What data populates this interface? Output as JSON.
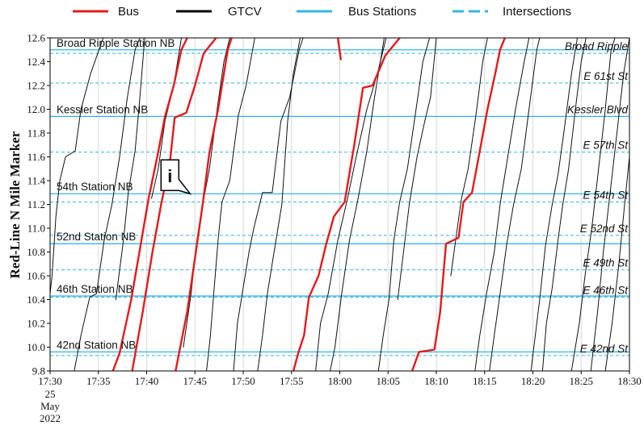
{
  "chart_data": {
    "type": "line",
    "title": "",
    "ylabel": "Red-Line N Mile Marker",
    "xlabel": "",
    "ylim": [
      9.8,
      12.6
    ],
    "y_ticks": [
      "9.8",
      "10.0",
      "10.2",
      "10.4",
      "10.6",
      "10.8",
      "11.0",
      "11.2",
      "11.4",
      "11.6",
      "11.8",
      "12.0",
      "12.2",
      "12.4",
      "12.6"
    ],
    "x_ticks": [
      "17:30",
      "17:35",
      "17:40",
      "17:45",
      "17:50",
      "17:55",
      "18:00",
      "18:05",
      "18:10",
      "18:15",
      "18:20",
      "18:25",
      "18:30"
    ],
    "x_date_lines": [
      "25",
      "May",
      "2022"
    ],
    "grid": "vertical",
    "legend": {
      "placement": "top",
      "entries": [
        {
          "label": "Bus",
          "color": "#e41a1c",
          "style": "solid"
        },
        {
          "label": "GTCV",
          "color": "#000000",
          "style": "solid"
        },
        {
          "label": "Bus Stations",
          "color": "#33b5e5",
          "style": "solid"
        },
        {
          "label": "Intersections",
          "color": "#33b5e5",
          "style": "dashed"
        }
      ]
    },
    "stations": [
      {
        "name": "Broad Ripple Station NB",
        "mile": 12.5
      },
      {
        "name": "Kessler Station NB",
        "mile": 11.94
      },
      {
        "name": "54th Station NB",
        "mile": 11.29
      },
      {
        "name": "52nd Station NB",
        "mile": 10.87
      },
      {
        "name": "46th Station NB",
        "mile": 10.43
      },
      {
        "name": "42nd Station NB",
        "mile": 9.96
      }
    ],
    "intersections": [
      {
        "name": "Broad Ripple",
        "mile": 12.47
      },
      {
        "name": "E 61st St",
        "mile": 12.22
      },
      {
        "name": "Kessler Blvd",
        "mile": 11.94
      },
      {
        "name": "E 57th St",
        "mile": 11.64
      },
      {
        "name": "E 54th St",
        "mile": 11.22
      },
      {
        "name": "E 52nd St",
        "mile": 10.94
      },
      {
        "name": "E 49th St",
        "mile": 10.65
      },
      {
        "name": "E 46th St",
        "mile": 10.42
      },
      {
        "name": "E 42nd St",
        "mile": 9.93
      }
    ],
    "callout": {
      "label": "i",
      "x_min": 44.5,
      "y": 11.29
    },
    "bus_series": [
      {
        "points": [
          [
            36.5,
            9.8
          ],
          [
            37.2,
            9.95
          ],
          [
            38.4,
            10.4
          ],
          [
            39.4,
            10.87
          ],
          [
            40.2,
            11.25
          ],
          [
            41.1,
            11.6
          ],
          [
            41.9,
            11.94
          ],
          [
            42.8,
            12.2
          ],
          [
            43.6,
            12.5
          ],
          [
            44.2,
            12.6
          ]
        ]
      },
      {
        "points": [
          [
            38.5,
            9.8
          ],
          [
            39.6,
            10.3
          ],
          [
            40.6,
            10.8
          ],
          [
            41.5,
            11.2
          ],
          [
            42.4,
            11.55
          ],
          [
            42.9,
            11.93
          ],
          [
            44.1,
            11.97
          ],
          [
            45.0,
            12.2
          ],
          [
            45.9,
            12.47
          ],
          [
            47.2,
            12.6
          ]
        ]
      },
      {
        "points": [
          [
            43.0,
            9.8
          ],
          [
            44.2,
            10.3
          ],
          [
            45.1,
            10.8
          ],
          [
            45.8,
            11.2
          ],
          [
            46.5,
            11.64
          ],
          [
            47.4,
            12.0
          ],
          [
            48.4,
            12.5
          ],
          [
            48.8,
            12.6
          ]
        ]
      },
      {
        "points": [
          [
            55.2,
            9.8
          ],
          [
            55.7,
            9.95
          ],
          [
            56.3,
            10.1
          ],
          [
            56.8,
            10.42
          ],
          [
            57.8,
            10.6
          ],
          [
            58.6,
            10.87
          ],
          [
            59.4,
            11.1
          ],
          [
            60.5,
            11.22
          ],
          [
            61.5,
            11.7
          ],
          [
            62.4,
            12.18
          ],
          [
            63.4,
            12.2
          ],
          [
            64.7,
            12.45
          ],
          [
            66.2,
            12.6
          ]
        ]
      },
      {
        "points": [
          [
            67.5,
            9.8
          ],
          [
            68.2,
            9.96
          ],
          [
            69.8,
            9.98
          ],
          [
            70.4,
            10.3
          ],
          [
            71.0,
            10.87
          ],
          [
            72.3,
            10.92
          ],
          [
            72.8,
            11.22
          ],
          [
            73.7,
            11.3
          ],
          [
            74.5,
            11.65
          ],
          [
            75.3,
            12.0
          ],
          [
            76.1,
            12.3
          ],
          [
            76.6,
            12.5
          ],
          [
            77.1,
            12.6
          ]
        ]
      },
      {
        "points": [
          [
            59.8,
            12.6
          ],
          [
            60.1,
            12.42
          ]
        ]
      }
    ],
    "gtcv_series": [
      {
        "points": [
          [
            30.0,
            10.45
          ],
          [
            30.2,
            10.6
          ],
          [
            30.6,
            11.1
          ],
          [
            31.0,
            11.4
          ],
          [
            31.6,
            11.6
          ],
          [
            32.6,
            11.65
          ],
          [
            33.2,
            12.0
          ],
          [
            34.2,
            12.3
          ],
          [
            35.5,
            12.6
          ]
        ]
      },
      {
        "points": [
          [
            32.5,
            9.8
          ],
          [
            33.2,
            10.1
          ],
          [
            34.1,
            10.42
          ],
          [
            34.8,
            10.45
          ],
          [
            35.6,
            10.9
          ],
          [
            36.4,
            11.2
          ],
          [
            37.2,
            11.6
          ],
          [
            38.0,
            12.1
          ],
          [
            38.8,
            12.5
          ],
          [
            39.3,
            12.6
          ]
        ]
      },
      {
        "points": [
          [
            36.8,
            10.4
          ],
          [
            37.6,
            10.9
          ],
          [
            38.1,
            11.3
          ],
          [
            38.8,
            11.65
          ],
          [
            39.3,
            12.1
          ],
          [
            39.8,
            12.6
          ]
        ]
      },
      {
        "points": [
          [
            40.5,
            11.25
          ],
          [
            41.2,
            11.5
          ],
          [
            41.9,
            11.9
          ],
          [
            42.8,
            12.2
          ],
          [
            43.6,
            12.6
          ]
        ]
      },
      {
        "points": [
          [
            43.8,
            10.0
          ],
          [
            44.6,
            10.45
          ],
          [
            45.2,
            10.9
          ],
          [
            45.8,
            11.2
          ],
          [
            46.5,
            11.5
          ],
          [
            47.3,
            12.0
          ],
          [
            48.0,
            12.4
          ],
          [
            48.6,
            12.6
          ]
        ]
      },
      {
        "points": [
          [
            46.2,
            9.8
          ],
          [
            46.6,
            10.1
          ],
          [
            47.0,
            10.5
          ],
          [
            47.4,
            10.9
          ],
          [
            47.8,
            11.22
          ],
          [
            48.6,
            11.4
          ],
          [
            49.5,
            11.95
          ],
          [
            50.3,
            12.2
          ],
          [
            51.2,
            12.6
          ]
        ]
      },
      {
        "points": [
          [
            49.0,
            9.8
          ],
          [
            49.4,
            10.2
          ],
          [
            49.9,
            10.45
          ],
          [
            50.6,
            10.8
          ],
          [
            51.1,
            11.0
          ],
          [
            52.0,
            11.3
          ],
          [
            53.0,
            11.3
          ],
          [
            53.9,
            11.9
          ],
          [
            54.8,
            12.1
          ],
          [
            55.8,
            12.5
          ],
          [
            56.2,
            12.6
          ]
        ]
      },
      {
        "points": [
          [
            51.5,
            9.8
          ],
          [
            52.0,
            10.1
          ],
          [
            52.5,
            10.45
          ],
          [
            53.2,
            10.8
          ],
          [
            54.0,
            11.2
          ],
          [
            54.6,
            11.9
          ],
          [
            55.2,
            12.3
          ],
          [
            55.9,
            12.6
          ]
        ]
      },
      {
        "points": [
          [
            57.5,
            9.8
          ],
          [
            58.0,
            10.2
          ],
          [
            58.8,
            10.45
          ],
          [
            59.8,
            10.9
          ],
          [
            60.8,
            11.25
          ],
          [
            61.7,
            11.6
          ],
          [
            62.8,
            12.0
          ],
          [
            63.9,
            12.3
          ],
          [
            64.8,
            12.6
          ]
        ]
      },
      {
        "points": [
          [
            59.0,
            9.8
          ],
          [
            59.5,
            10.0
          ],
          [
            60.2,
            10.45
          ],
          [
            61.0,
            10.9
          ],
          [
            61.9,
            11.25
          ],
          [
            62.8,
            11.65
          ],
          [
            63.6,
            12.1
          ],
          [
            64.6,
            12.6
          ]
        ]
      },
      {
        "points": [
          [
            64.0,
            9.8
          ],
          [
            64.5,
            10.1
          ],
          [
            65.1,
            10.4
          ],
          [
            65.6,
            10.9
          ],
          [
            66.2,
            11.22
          ],
          [
            67.0,
            11.5
          ],
          [
            67.9,
            12.0
          ],
          [
            68.6,
            12.4
          ],
          [
            69.3,
            12.6
          ]
        ]
      },
      {
        "points": [
          [
            66.0,
            10.4
          ],
          [
            66.6,
            10.8
          ],
          [
            67.2,
            11.2
          ],
          [
            68.0,
            11.6
          ],
          [
            68.8,
            11.9
          ],
          [
            69.4,
            12.1
          ],
          [
            70.0,
            12.6
          ]
        ]
      },
      {
        "points": [
          [
            71.5,
            10.6
          ],
          [
            72.0,
            10.9
          ],
          [
            72.6,
            11.25
          ],
          [
            73.3,
            11.5
          ],
          [
            74.1,
            11.95
          ],
          [
            74.8,
            12.4
          ],
          [
            75.3,
            12.6
          ]
        ]
      },
      {
        "points": [
          [
            74.0,
            9.8
          ],
          [
            74.5,
            10.1
          ],
          [
            75.2,
            10.45
          ],
          [
            76.0,
            10.8
          ],
          [
            76.6,
            11.2
          ],
          [
            77.4,
            11.6
          ],
          [
            78.2,
            12.0
          ],
          [
            79.1,
            12.4
          ],
          [
            79.6,
            12.6
          ]
        ]
      },
      {
        "points": [
          [
            75.5,
            9.8
          ],
          [
            76.0,
            10.1
          ],
          [
            76.6,
            10.45
          ],
          [
            77.3,
            10.87
          ],
          [
            78.0,
            11.2
          ],
          [
            78.8,
            11.5
          ],
          [
            79.6,
            12.0
          ],
          [
            80.4,
            12.5
          ],
          [
            80.7,
            12.6
          ]
        ]
      },
      {
        "points": [
          [
            79.8,
            9.8
          ],
          [
            80.1,
            10.0
          ],
          [
            80.7,
            10.4
          ],
          [
            81.3,
            10.85
          ],
          [
            82.0,
            11.2
          ],
          [
            82.6,
            11.45
          ],
          [
            83.2,
            11.8
          ],
          [
            84.0,
            12.3
          ],
          [
            84.6,
            12.6
          ]
        ]
      },
      {
        "points": [
          [
            81.0,
            9.8
          ],
          [
            81.4,
            10.2
          ],
          [
            82.0,
            10.5
          ],
          [
            82.6,
            10.9
          ],
          [
            83.1,
            11.2
          ],
          [
            83.7,
            11.5
          ],
          [
            84.4,
            12.0
          ],
          [
            85.0,
            12.4
          ],
          [
            85.5,
            12.6
          ]
        ]
      },
      {
        "points": [
          [
            84.0,
            9.8
          ],
          [
            84.8,
            10.2
          ],
          [
            85.4,
            10.6
          ],
          [
            86.1,
            11.0
          ],
          [
            86.8,
            11.5
          ],
          [
            87.5,
            12.0
          ],
          [
            88.1,
            12.5
          ],
          [
            88.5,
            12.6
          ]
        ]
      },
      {
        "points": [
          [
            86.0,
            9.8
          ],
          [
            86.7,
            10.3
          ],
          [
            87.3,
            10.8
          ],
          [
            88.0,
            11.3
          ],
          [
            88.7,
            11.8
          ],
          [
            89.4,
            12.3
          ],
          [
            90.0,
            12.6
          ]
        ]
      },
      {
        "points": [
          [
            87.5,
            9.8
          ],
          [
            88.2,
            10.2
          ],
          [
            88.9,
            10.7
          ],
          [
            89.5,
            11.2
          ],
          [
            90.0,
            11.6
          ]
        ]
      }
    ]
  }
}
